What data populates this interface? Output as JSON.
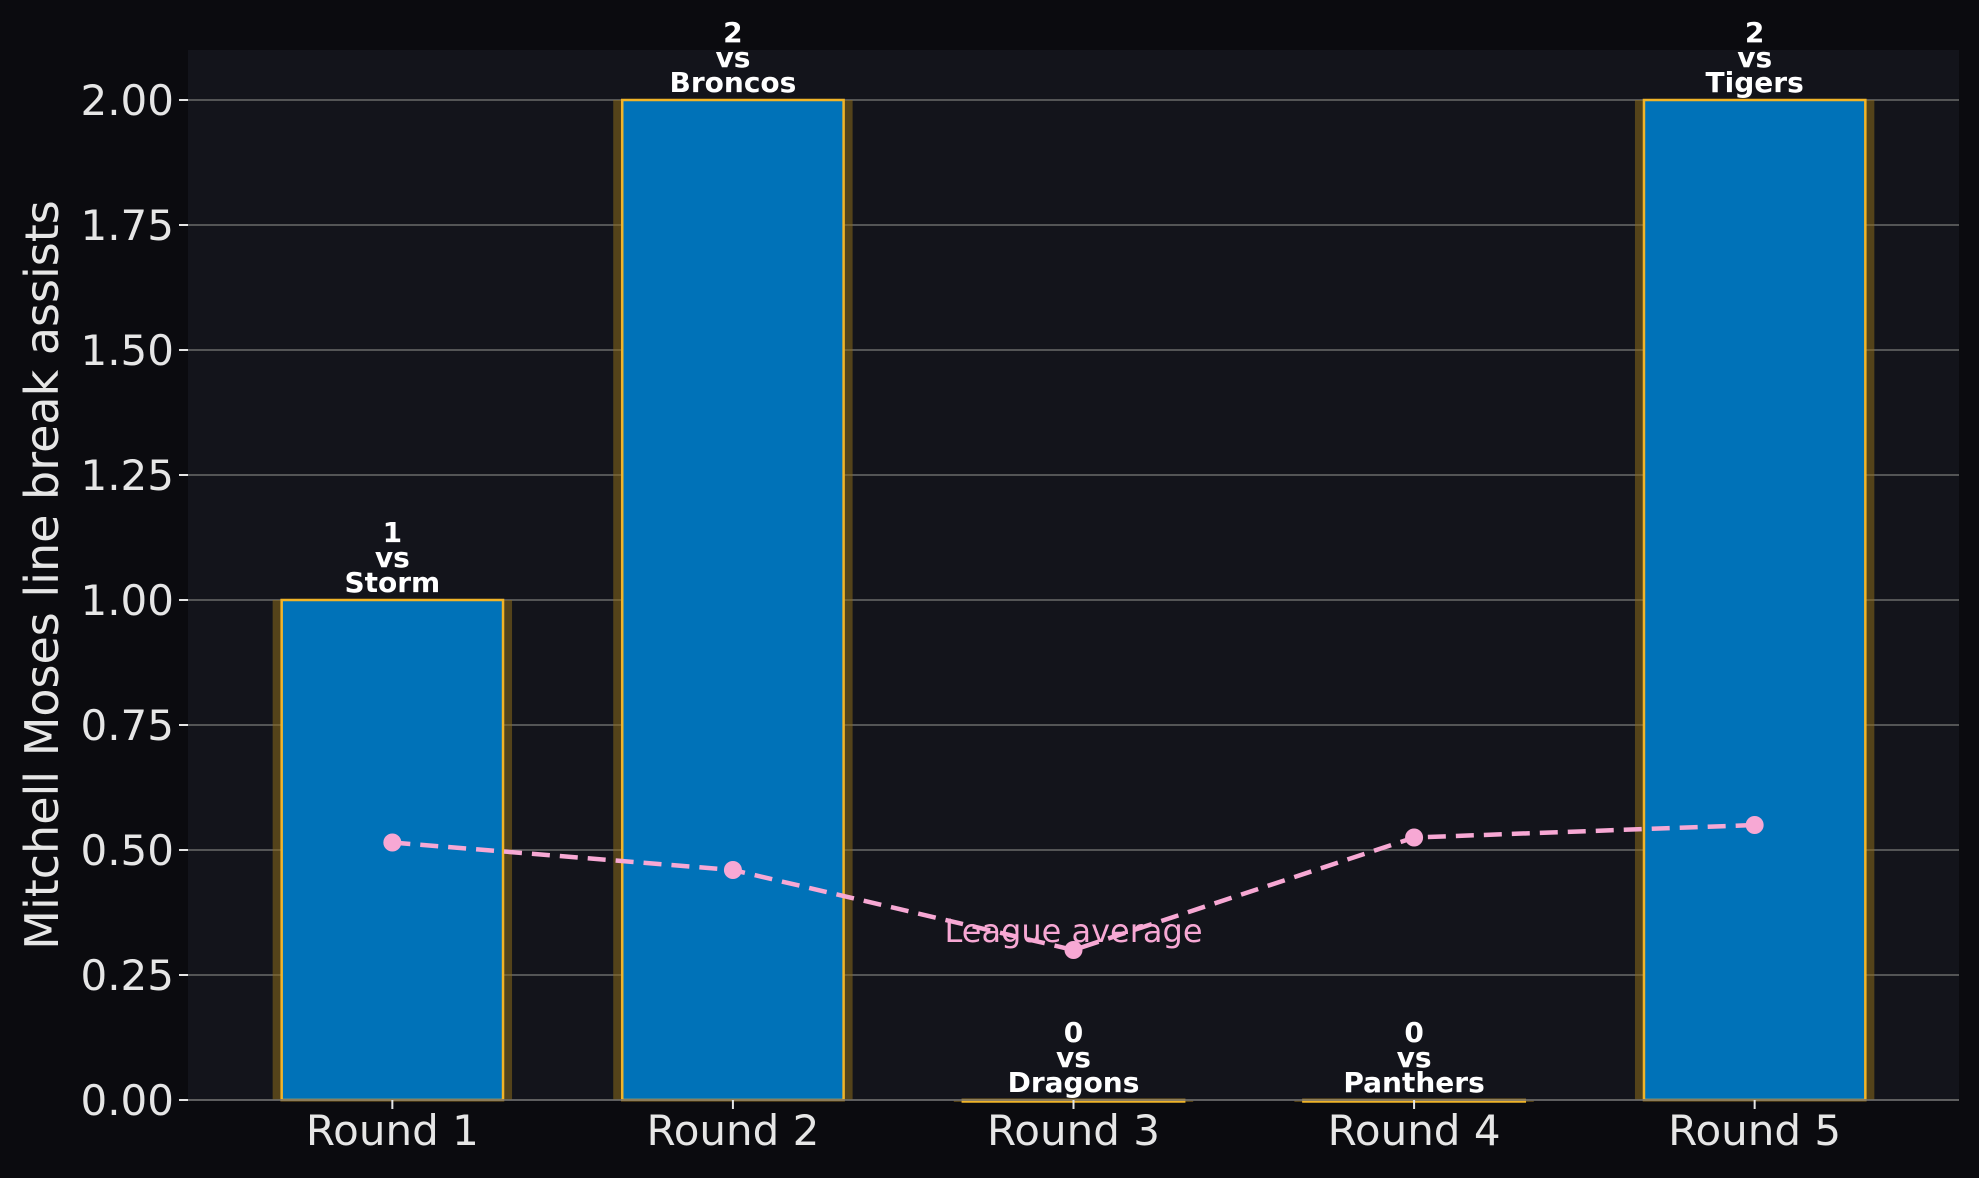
{
  "chart_data": {
    "type": "bar",
    "categories": [
      "Round 1",
      "Round 2",
      "Round 3",
      "Round 4",
      "Round 5"
    ],
    "series": [
      {
        "values": [
          1,
          2,
          0,
          0,
          2
        ]
      }
    ],
    "bar_labels": [
      [
        "1",
        "vs",
        "Storm"
      ],
      [
        "2",
        "vs",
        "Broncos"
      ],
      [
        "0",
        "vs",
        "Dragons"
      ],
      [
        "0",
        "vs",
        "Panthers"
      ],
      [
        "2",
        "vs",
        "Tigers"
      ]
    ],
    "overlay_line": {
      "name": "League average",
      "values": [
        0.515,
        0.46,
        0.3,
        0.525,
        0.55
      ],
      "style": "dashed",
      "markers": true,
      "label_position": "Round 3"
    },
    "title": "",
    "xlabel": "",
    "ylabel": "Mitchell Moses line break assists",
    "ylim": [
      0,
      2.1
    ],
    "yticks": [
      "0.00",
      "0.25",
      "0.50",
      "0.75",
      "1.00",
      "1.25",
      "1.50",
      "1.75",
      "2.00"
    ],
    "grid": "horizontal",
    "colors": {
      "page_background": "#0b0b0f",
      "plot_background": "#13141b",
      "bar_fill": "#0072b8",
      "bar_edge": "#f0b429",
      "bar_glow": "#8a6a1a",
      "line": "#f7a8d4",
      "grid": "#6b6b6b",
      "text": "#e6e6e6"
    }
  }
}
